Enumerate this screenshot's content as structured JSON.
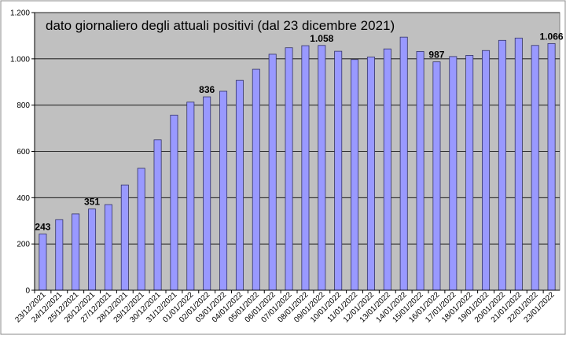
{
  "chart_data": {
    "type": "bar",
    "title": "dato giornaliero degli attuali positivi (dal 23 dicembre 2021)",
    "categories": [
      "23/12/2021",
      "24/12/2021",
      "25/12/2021",
      "26/12/2021",
      "27/12/2021",
      "28/12/2021",
      "29/12/2021",
      "30/12/2021",
      "31/12/2021",
      "01/01/2022",
      "02/01/2022",
      "03/01/2022",
      "04/01/2022",
      "05/01/2022",
      "06/01/2022",
      "07/01/2022",
      "08/01/2022",
      "09/01/2022",
      "10/01/2022",
      "11/01/2022",
      "12/01/2022",
      "13/01/2022",
      "14/01/2022",
      "15/01/2022",
      "16/01/2022",
      "17/01/2022",
      "18/01/2022",
      "19/01/2022",
      "20/01/2022",
      "21/01/2022",
      "22/01/2022",
      "23/01/2022"
    ],
    "values": [
      243,
      305,
      330,
      351,
      370,
      455,
      527,
      650,
      757,
      813,
      836,
      860,
      907,
      955,
      1020,
      1048,
      1057,
      1058,
      1033,
      997,
      1008,
      1043,
      1094,
      1032,
      987,
      1010,
      1015,
      1036,
      1080,
      1090,
      1058,
      1066
    ],
    "value_labels": [
      "243",
      null,
      null,
      "351",
      null,
      null,
      null,
      null,
      null,
      null,
      "836",
      null,
      null,
      null,
      null,
      null,
      null,
      "1.058",
      null,
      null,
      null,
      null,
      null,
      null,
      "987",
      null,
      null,
      null,
      null,
      null,
      null,
      "1.066"
    ],
    "color": "#9999ff",
    "ylim": [
      0,
      1200
    ],
    "yticks": [
      0,
      200,
      400,
      600,
      800,
      {
        "value": 1000,
        "label": "1.000"
      },
      {
        "value": 1200,
        "label": "1.200"
      }
    ],
    "grid": true
  }
}
